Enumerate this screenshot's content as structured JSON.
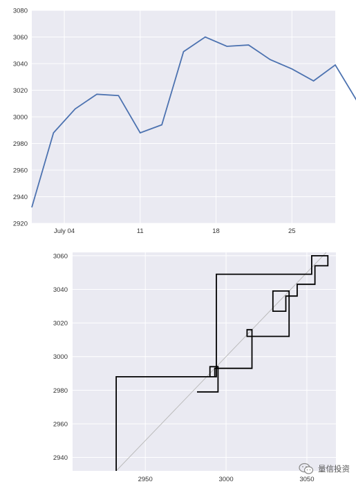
{
  "colors": {
    "plot_bg": "#EAEAF2",
    "grid": "#FFFFFF",
    "line": "#4C72B0",
    "cobweb": "#000000",
    "diagonal": "#BBBBBB"
  },
  "chart_data": [
    {
      "type": "line",
      "x": [
        "2015-07-01",
        "2015-07-02",
        "2015-07-03",
        "2015-07-04",
        "2015-07-05",
        "2015-07-06",
        "2015-07-07",
        "2015-07-08",
        "2015-07-09",
        "2015-07-10",
        "2015-07-11",
        "2015-07-12",
        "2015-07-13",
        "2015-07-14",
        "2015-07-15",
        "2015-07-16",
        "2015-07-17",
        "2015-07-18",
        "2015-07-19",
        "2015-07-20",
        "2015-07-21",
        "2015-07-22",
        "2015-07-23",
        "2015-07-24",
        "2015-07-25",
        "2015-07-26",
        "2015-07-27",
        "2015-07-28",
        "2015-07-29",
        "2015-07-30",
        "2015-07-31"
      ],
      "series": [
        {
          "values": [
            2932,
            null,
            2988,
            null,
            3006,
            null,
            3017,
            null,
            3016,
            null,
            2988,
            null,
            2994,
            null,
            3049,
            null,
            3060,
            null,
            3053,
            null,
            3054,
            null,
            3043,
            null,
            3036,
            null,
            3027,
            null,
            3039,
            null,
            3012
          ]
        }
      ],
      "ylim": [
        2920,
        3080
      ],
      "yticks": [
        2920,
        2940,
        2960,
        2980,
        3000,
        3020,
        3040,
        3060,
        3080
      ],
      "xtick_labels": [
        "July 04",
        "11",
        "18",
        "25"
      ],
      "xtick_dates": [
        "2015-07-04",
        "2015-07-11",
        "2015-07-18",
        "2015-07-25"
      ],
      "xlim": [
        "2015-07-01",
        "2015-07-29"
      ]
    },
    {
      "type": "cobweb",
      "points": [
        [
          2932,
          2932
        ],
        [
          2932,
          2988
        ],
        [
          2994,
          2988
        ],
        [
          2994,
          3049
        ],
        [
          3053,
          3049
        ],
        [
          3053,
          3060
        ],
        [
          3063,
          3060
        ],
        [
          3063,
          3054
        ],
        [
          3055,
          3054
        ],
        [
          3055,
          3043
        ],
        [
          3044,
          3043
        ],
        [
          3044,
          3036
        ],
        [
          3037,
          3036
        ],
        [
          3037,
          3027
        ],
        [
          3029,
          3027
        ],
        [
          3029,
          3039
        ],
        [
          3039,
          3039
        ],
        [
          3039,
          3012
        ],
        [
          3013,
          3012
        ],
        [
          3013,
          3016
        ],
        [
          3016,
          3016
        ],
        [
          3016,
          2993
        ],
        [
          2993,
          2993
        ],
        [
          2993,
          2988
        ],
        [
          2990,
          2988
        ],
        [
          2990,
          2994
        ],
        [
          2995,
          2994
        ],
        [
          2995,
          2979
        ],
        [
          2982,
          2979
        ]
      ],
      "xlim": [
        2905,
        3068
      ],
      "ylim": [
        2932,
        3062
      ],
      "xticks": [
        2950,
        3000,
        3050
      ],
      "yticks": [
        2940,
        2960,
        2980,
        3000,
        3020,
        3040,
        3060
      ],
      "diagonal": true
    }
  ],
  "watermark": {
    "text": "量信投资"
  }
}
